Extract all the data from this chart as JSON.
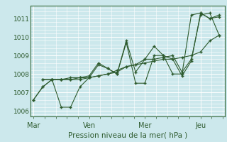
{
  "bg_color": "#cce8ec",
  "grid_color": "#ffffff",
  "line_color": "#2d5a2d",
  "marker_color": "#2d5a2d",
  "xlabel": "Pression niveau de la mer( hPa )",
  "ylim": [
    1005.7,
    1011.7
  ],
  "yticks": [
    1006,
    1007,
    1008,
    1009,
    1010,
    1011
  ],
  "xtick_labels": [
    "Mar",
    "Ven",
    "Mer",
    "Jeu"
  ],
  "xtick_positions": [
    0,
    3,
    6,
    9
  ],
  "lines": [
    {
      "x": [
        0,
        0.5,
        1.0,
        1.5,
        2.0,
        2.5,
        3.0,
        3.5,
        4.0,
        4.5,
        5.0,
        5.5,
        6.0,
        6.5,
        7.0,
        7.5,
        8.0,
        8.5,
        9.0,
        9.5,
        10.0
      ],
      "y": [
        1006.6,
        1007.3,
        1007.7,
        1006.2,
        1006.2,
        1007.3,
        1007.8,
        1008.5,
        1008.3,
        1008.0,
        1009.7,
        1007.5,
        1007.5,
        1009.0,
        1009.0,
        1008.0,
        1008.0,
        1011.2,
        1011.3,
        1011.0,
        1011.1
      ]
    },
    {
      "x": [
        0,
        0.5,
        1.0,
        1.5,
        2.0,
        2.5,
        3.0,
        3.5,
        4.0,
        4.5,
        5.0,
        5.5,
        6.0,
        6.5,
        7.0,
        7.5,
        8.0,
        8.5,
        9.0,
        9.5,
        10.0
      ],
      "y": [
        1006.6,
        1007.3,
        1007.7,
        1007.7,
        1007.7,
        1007.8,
        1007.8,
        1007.9,
        1008.0,
        1008.2,
        1008.4,
        1008.5,
        1008.6,
        1008.7,
        1008.8,
        1008.8,
        1008.9,
        1009.0,
        1009.2,
        1009.8,
        1010.1
      ]
    },
    {
      "x": [
        0.5,
        1.0,
        1.5,
        2.0,
        2.5,
        3.0,
        3.5,
        4.0,
        4.5,
        5.0,
        5.5,
        6.0,
        6.5,
        7.0,
        7.5,
        8.0,
        8.5,
        9.0,
        9.5,
        10.0
      ],
      "y": [
        1007.7,
        1007.7,
        1007.7,
        1007.7,
        1007.7,
        1007.8,
        1007.9,
        1008.0,
        1008.1,
        1008.4,
        1008.5,
        1008.8,
        1008.8,
        1008.9,
        1009.0,
        1008.1,
        1008.8,
        1011.2,
        1011.3,
        1010.1
      ]
    },
    {
      "x": [
        0.5,
        1.0,
        1.5,
        2.0,
        2.5,
        3.0,
        3.5,
        4.0,
        4.5,
        5.0,
        5.5,
        6.0,
        6.5,
        7.0,
        7.5,
        8.0,
        8.5,
        9.0,
        9.5,
        10.0
      ],
      "y": [
        1007.7,
        1007.7,
        1007.7,
        1007.8,
        1007.8,
        1007.9,
        1008.6,
        1008.3,
        1008.0,
        1009.8,
        1008.1,
        1008.8,
        1009.5,
        1009.0,
        1008.8,
        1007.9,
        1008.7,
        1011.3,
        1011.0,
        1011.2
      ]
    }
  ]
}
